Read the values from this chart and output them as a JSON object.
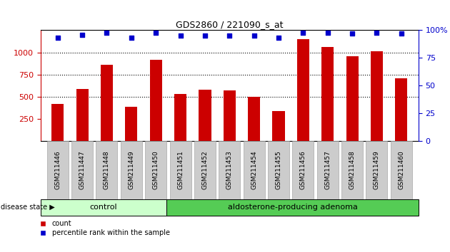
{
  "title": "GDS2860 / 221090_s_at",
  "samples": [
    "GSM211446",
    "GSM211447",
    "GSM211448",
    "GSM211449",
    "GSM211450",
    "GSM211451",
    "GSM211452",
    "GSM211453",
    "GSM211454",
    "GSM211455",
    "GSM211456",
    "GSM211457",
    "GSM211458",
    "GSM211459",
    "GSM211460"
  ],
  "counts": [
    420,
    590,
    860,
    390,
    920,
    530,
    580,
    570,
    500,
    335,
    1150,
    1060,
    960,
    1010,
    710
  ],
  "percentiles": [
    93,
    96,
    98,
    93,
    98,
    95,
    95,
    95,
    95,
    93,
    98,
    98,
    97,
    98,
    97
  ],
  "control_count": 5,
  "groups": [
    "control",
    "aldosterone-producing adenoma"
  ],
  "bar_color": "#cc0000",
  "dot_color": "#0000cc",
  "ylim_left": [
    0,
    1250
  ],
  "ylim_right": [
    0,
    100
  ],
  "yticks_left": [
    250,
    500,
    750,
    1000
  ],
  "yticks_right": [
    0,
    25,
    50,
    75,
    100
  ],
  "grid_values": [
    500,
    750,
    1000
  ],
  "control_bg": "#ccffcc",
  "adenoma_bg": "#55cc55",
  "tick_label_bg": "#cccccc",
  "disease_label": "disease state"
}
